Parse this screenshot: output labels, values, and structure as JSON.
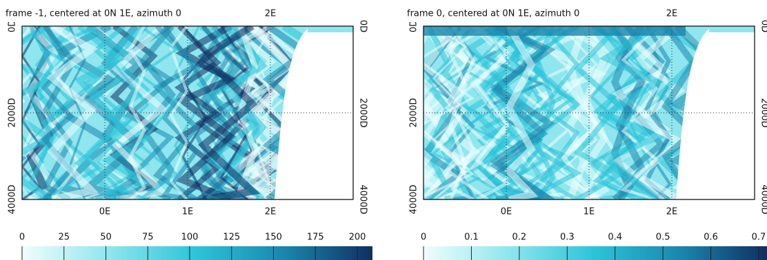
{
  "chart_data": [
    {
      "type": "heatmap",
      "title": "frame -1, centered at 0N 1E, azimuth 0",
      "xlim": [
        -1,
        3
      ],
      "xticks": [
        {
          "value": 0,
          "label": "0E"
        },
        {
          "value": 1,
          "label": "1E"
        },
        {
          "value": 2,
          "label": "2E"
        }
      ],
      "top_xticks": [
        {
          "value": 2,
          "label": "2E"
        }
      ],
      "ylim": [
        0,
        4000
      ],
      "yticks": [
        {
          "value": 0,
          "label": "0D"
        },
        {
          "value": 2000,
          "label": "2000D"
        },
        {
          "value": 4000,
          "label": "4000D"
        }
      ],
      "grid": true,
      "colormap": [
        "#effdfd",
        "#8fe6ee",
        "#2cc3d8",
        "#1a86ad",
        "#0f2f63"
      ],
      "colorbar": {
        "lim": [
          0,
          200
        ],
        "ticks": [
          0,
          25,
          50,
          75,
          100,
          125,
          150,
          175,
          200
        ]
      }
    },
    {
      "type": "heatmap",
      "title": "frame 0, centered at 0N 1E, azimuth 0",
      "xlim": [
        -1,
        3
      ],
      "xticks": [
        {
          "value": 0,
          "label": "0E"
        },
        {
          "value": 1,
          "label": "1E"
        },
        {
          "value": 2,
          "label": "2E"
        }
      ],
      "top_xticks": [
        {
          "value": 2,
          "label": "2E"
        }
      ],
      "ylim": [
        0,
        4000
      ],
      "yticks": [
        {
          "value": 0,
          "label": "0D"
        },
        {
          "value": 2000,
          "label": "2000D"
        },
        {
          "value": 4000,
          "label": "4000D"
        }
      ],
      "grid": true,
      "colormap": [
        "#effdfd",
        "#8fe6ee",
        "#2cc3d8",
        "#1a86ad",
        "#0f2f63"
      ],
      "colorbar": {
        "lim": [
          0,
          0.7
        ],
        "ticks": [
          0,
          0.1,
          0.2,
          0.3,
          0.4,
          0.5,
          0.6,
          0.7
        ]
      }
    }
  ]
}
